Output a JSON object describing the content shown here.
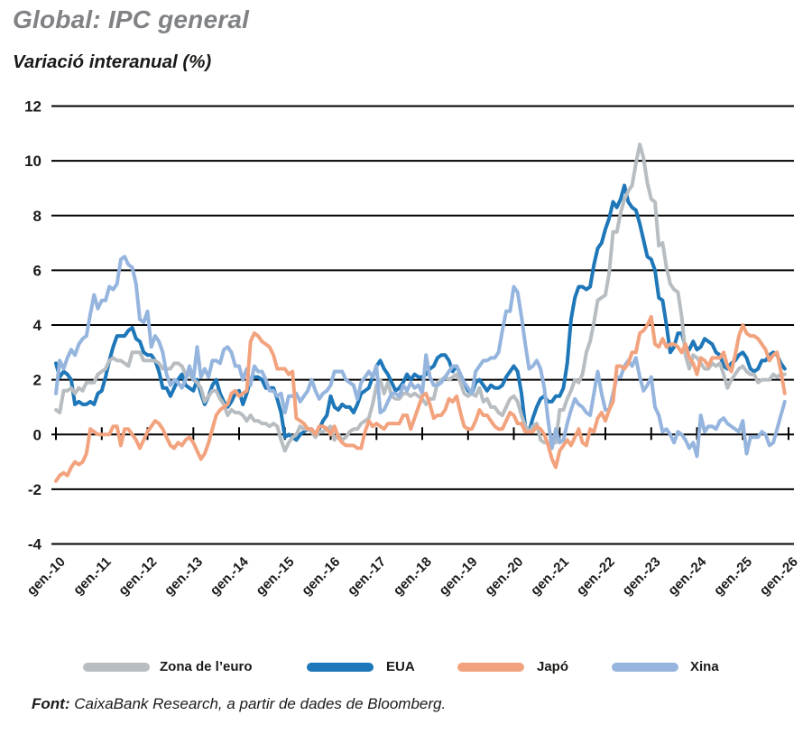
{
  "header": {
    "title": "Global: IPC general",
    "subtitle": "Variació interanual (%)"
  },
  "chart_data": {
    "type": "line",
    "title": "Global: IPC general",
    "ylabel": "Variació interanual (%)",
    "xlabel": "",
    "ylim": [
      -4,
      12
    ],
    "yticks": [
      12,
      10,
      8,
      6,
      4,
      2,
      0,
      -2,
      -4
    ],
    "grid": "horizontal-black-lines",
    "legend_position": "bottom",
    "x_frequency": "monthly",
    "x_range": "gen.-10 to gen.-26",
    "x_tick_labels": [
      "gen.-10",
      "gen.-11",
      "gen.-12",
      "gen.-13",
      "gen.-14",
      "gen.-15",
      "gen.-16",
      "gen.-17",
      "gen.-18",
      "gen.-19",
      "gen.-20",
      "gen.-21",
      "gen.-22",
      "gen.-23",
      "gen.-24",
      "gen.-25",
      "gen.-26"
    ],
    "series": [
      {
        "name": "Zona de l’euro",
        "color": "#b7bdc1",
        "values": [
          0.9,
          0.8,
          1.6,
          1.6,
          1.7,
          1.5,
          1.7,
          1.6,
          1.9,
          1.9,
          1.9,
          2.2,
          2.3,
          2.4,
          2.7,
          2.8,
          2.7,
          2.7,
          2.6,
          2.5,
          3.0,
          3.0,
          3.0,
          2.7,
          2.7,
          2.7,
          2.7,
          2.6,
          2.4,
          2.4,
          2.4,
          2.6,
          2.6,
          2.5,
          2.2,
          2.2,
          2.0,
          1.9,
          1.7,
          1.2,
          1.4,
          1.6,
          1.6,
          1.3,
          1.1,
          0.7,
          0.9,
          0.8,
          0.8,
          0.7,
          0.5,
          0.7,
          0.5,
          0.5,
          0.4,
          0.4,
          0.3,
          0.4,
          0.3,
          -0.2,
          -0.6,
          -0.3,
          -0.1,
          0.0,
          0.3,
          0.2,
          0.2,
          0.1,
          -0.1,
          0.1,
          0.1,
          0.2,
          0.3,
          -0.2,
          0.0,
          -0.2,
          -0.1,
          0.1,
          0.2,
          0.2,
          0.4,
          0.5,
          0.6,
          1.1,
          1.8,
          2.0,
          1.5,
          1.9,
          1.4,
          1.3,
          1.3,
          1.5,
          1.5,
          1.4,
          1.5,
          1.4,
          1.3,
          1.1,
          1.3,
          1.3,
          1.9,
          2.0,
          2.1,
          2.0,
          2.1,
          2.2,
          1.9,
          1.5,
          1.4,
          1.5,
          1.4,
          1.7,
          1.2,
          1.3,
          1.0,
          1.0,
          0.8,
          0.7,
          1.0,
          1.3,
          1.4,
          1.2,
          0.7,
          0.3,
          0.1,
          0.3,
          0.4,
          -0.2,
          -0.3,
          -0.3,
          -0.3,
          -0.3,
          0.9,
          0.9,
          1.3,
          1.6,
          2.0,
          1.9,
          2.2,
          3.0,
          3.4,
          4.1,
          4.9,
          5.0,
          5.1,
          5.9,
          7.4,
          7.4,
          8.1,
          8.6,
          8.9,
          9.1,
          9.9,
          10.6,
          10.1,
          9.2,
          8.6,
          8.5,
          6.9,
          7.0,
          6.1,
          5.5,
          5.3,
          5.2,
          4.3,
          2.9,
          2.4,
          2.9,
          2.8,
          2.6,
          2.4,
          2.4,
          2.6,
          2.5,
          2.6,
          2.2,
          1.7,
          2.0,
          2.2,
          2.4,
          2.5,
          2.3,
          2.2,
          2.2,
          1.9,
          2.0,
          2.0,
          2.0,
          2.2,
          2.1,
          2.2,
          2.2
        ]
      },
      {
        "name": "EUA",
        "color": "#1e77b8",
        "values": [
          2.6,
          2.1,
          2.3,
          2.2,
          2.0,
          1.1,
          1.2,
          1.1,
          1.1,
          1.2,
          1.1,
          1.5,
          1.6,
          2.1,
          2.7,
          3.2,
          3.6,
          3.6,
          3.6,
          3.8,
          3.9,
          3.5,
          3.4,
          3.0,
          2.9,
          2.9,
          2.7,
          2.3,
          1.7,
          1.7,
          1.4,
          1.7,
          2.0,
          2.2,
          1.8,
          1.7,
          1.6,
          2.0,
          1.5,
          1.1,
          1.4,
          1.8,
          2.0,
          1.5,
          1.2,
          1.0,
          1.2,
          1.5,
          1.6,
          1.1,
          1.5,
          2.0,
          2.1,
          2.1,
          2.0,
          1.7,
          1.7,
          1.7,
          1.3,
          0.8,
          -0.1,
          0.0,
          -0.1,
          -0.2,
          0.0,
          0.1,
          0.2,
          0.2,
          0.0,
          0.2,
          0.5,
          0.7,
          1.4,
          1.0,
          0.9,
          1.1,
          1.0,
          1.0,
          0.8,
          1.1,
          1.5,
          1.6,
          1.7,
          2.1,
          2.5,
          2.7,
          2.4,
          2.2,
          1.9,
          1.6,
          1.7,
          1.9,
          2.2,
          2.0,
          2.2,
          2.1,
          2.1,
          2.2,
          2.4,
          2.5,
          2.8,
          2.9,
          2.9,
          2.7,
          2.3,
          2.5,
          2.2,
          1.9,
          1.6,
          1.5,
          1.9,
          2.0,
          1.8,
          1.6,
          1.8,
          1.7,
          1.7,
          1.8,
          2.1,
          2.3,
          2.5,
          2.3,
          1.5,
          0.3,
          0.1,
          0.6,
          1.0,
          1.3,
          1.4,
          1.2,
          1.2,
          1.4,
          1.4,
          1.7,
          2.6,
          4.2,
          5.0,
          5.4,
          5.4,
          5.3,
          5.4,
          6.2,
          6.8,
          7.0,
          7.5,
          7.9,
          8.5,
          8.3,
          8.6,
          9.1,
          8.5,
          8.3,
          8.2,
          7.7,
          7.1,
          6.5,
          6.4,
          6.0,
          5.0,
          4.9,
          4.0,
          3.0,
          3.2,
          3.7,
          3.7,
          3.2,
          3.1,
          3.4,
          3.1,
          3.2,
          3.5,
          3.4,
          3.3,
          3.0,
          2.9,
          2.5,
          2.4,
          2.6,
          2.7,
          2.9,
          3.0,
          2.8,
          2.4,
          2.3,
          2.4,
          2.7,
          2.7,
          2.9,
          3.0,
          2.9,
          2.6,
          2.4
        ]
      },
      {
        "name": "Japó",
        "color": "#f2a37e",
        "values": [
          -1.7,
          -1.5,
          -1.4,
          -1.5,
          -1.2,
          -1.0,
          -1.1,
          -1.0,
          -0.7,
          0.2,
          0.1,
          0.0,
          0.0,
          0.0,
          0.0,
          0.3,
          0.3,
          -0.4,
          0.2,
          0.2,
          0.0,
          -0.2,
          -0.5,
          -0.2,
          0.1,
          0.3,
          0.5,
          0.4,
          0.2,
          -0.1,
          -0.4,
          -0.5,
          -0.3,
          -0.4,
          -0.2,
          -0.1,
          -0.3,
          -0.6,
          -0.9,
          -0.7,
          -0.3,
          0.2,
          0.7,
          0.9,
          1.0,
          1.1,
          1.5,
          1.6,
          1.4,
          1.5,
          1.6,
          3.4,
          3.7,
          3.6,
          3.4,
          3.3,
          3.2,
          2.9,
          2.4,
          2.4,
          2.4,
          2.2,
          2.3,
          0.6,
          0.5,
          0.4,
          0.2,
          0.2,
          0.0,
          0.3,
          0.3,
          0.2,
          0.0,
          0.3,
          -0.1,
          -0.3,
          -0.4,
          -0.4,
          -0.4,
          -0.5,
          -0.5,
          0.1,
          0.5,
          0.3,
          0.4,
          0.3,
          0.2,
          0.4,
          0.4,
          0.4,
          0.4,
          0.7,
          0.7,
          0.2,
          0.6,
          1.0,
          1.4,
          1.5,
          1.1,
          0.6,
          0.7,
          0.7,
          0.9,
          1.3,
          1.2,
          1.4,
          0.8,
          0.3,
          0.2,
          0.2,
          0.5,
          0.9,
          0.7,
          0.7,
          0.5,
          0.3,
          0.2,
          0.2,
          0.5,
          0.8,
          0.7,
          0.4,
          0.4,
          0.1,
          0.1,
          0.1,
          0.3,
          0.2,
          0.0,
          -0.4,
          -0.9,
          -1.2,
          -0.6,
          -0.4,
          -0.2,
          -0.4,
          -0.1,
          0.2,
          -0.3,
          -0.4,
          0.2,
          0.1,
          0.6,
          0.8,
          0.5,
          0.9,
          1.2,
          2.5,
          2.5,
          2.4,
          2.6,
          3.0,
          3.0,
          3.7,
          3.8,
          4.0,
          4.3,
          3.3,
          3.2,
          3.5,
          3.2,
          3.3,
          3.3,
          3.2,
          3.0,
          3.3,
          2.8,
          2.6,
          2.2,
          2.8,
          2.7,
          2.5,
          2.8,
          2.8,
          2.8,
          3.0,
          2.5,
          2.3,
          2.9,
          3.6,
          4.0,
          3.7,
          3.6,
          3.6,
          3.5,
          3.3,
          3.1,
          2.7,
          2.9,
          3.0,
          2.3,
          1.5
        ]
      },
      {
        "name": "Xina",
        "color": "#95b5de",
        "values": [
          1.5,
          2.7,
          2.4,
          2.8,
          3.1,
          2.9,
          3.3,
          3.5,
          3.6,
          4.4,
          5.1,
          4.6,
          4.9,
          4.9,
          5.4,
          5.3,
          5.5,
          6.4,
          6.5,
          6.2,
          6.1,
          5.5,
          4.2,
          4.1,
          4.5,
          3.2,
          3.6,
          3.4,
          3.0,
          2.2,
          1.8,
          2.0,
          1.9,
          1.7,
          2.0,
          2.5,
          2.0,
          3.2,
          2.1,
          2.4,
          2.1,
          2.7,
          2.7,
          2.6,
          3.1,
          3.2,
          3.0,
          2.5,
          2.5,
          2.0,
          2.4,
          1.8,
          2.5,
          2.3,
          2.3,
          2.0,
          1.6,
          1.6,
          1.4,
          1.5,
          0.8,
          1.4,
          1.4,
          1.5,
          1.2,
          1.4,
          1.6,
          2.0,
          1.6,
          1.3,
          1.5,
          1.6,
          1.8,
          2.3,
          2.3,
          2.3,
          2.0,
          1.9,
          1.8,
          1.3,
          1.9,
          2.1,
          2.3,
          2.1,
          2.5,
          0.8,
          0.9,
          1.2,
          1.5,
          1.5,
          1.4,
          1.8,
          1.6,
          1.9,
          1.7,
          1.8,
          1.5,
          2.9,
          2.1,
          1.8,
          1.8,
          1.9,
          2.1,
          2.3,
          2.5,
          2.5,
          2.2,
          1.9,
          1.7,
          1.5,
          2.3,
          2.5,
          2.7,
          2.7,
          2.8,
          2.8,
          3.0,
          3.8,
          4.5,
          4.5,
          5.4,
          5.2,
          4.3,
          3.3,
          2.4,
          2.5,
          2.7,
          2.4,
          1.7,
          0.5,
          -0.5,
          0.2,
          -0.3,
          -0.2,
          0.4,
          0.9,
          1.3,
          1.1,
          1.0,
          0.8,
          0.7,
          1.5,
          2.3,
          1.5,
          0.9,
          0.9,
          1.5,
          2.1,
          2.1,
          2.5,
          2.7,
          2.5,
          2.8,
          2.1,
          1.6,
          1.8,
          2.1,
          1.0,
          0.7,
          0.1,
          0.2,
          0.0,
          -0.3,
          0.1,
          0.0,
          -0.2,
          -0.5,
          -0.3,
          -0.8,
          0.7,
          0.1,
          0.3,
          0.3,
          0.2,
          0.5,
          0.6,
          0.4,
          0.3,
          0.2,
          0.1,
          0.5,
          -0.7,
          -0.1,
          -0.1,
          -0.1,
          0.1,
          0.0,
          -0.4,
          -0.3,
          0.2,
          0.7,
          1.2
        ]
      }
    ]
  },
  "footer": {
    "source_label": "Font:",
    "source_text": " CaixaBank Research, a partir de dades de Bloomberg."
  }
}
